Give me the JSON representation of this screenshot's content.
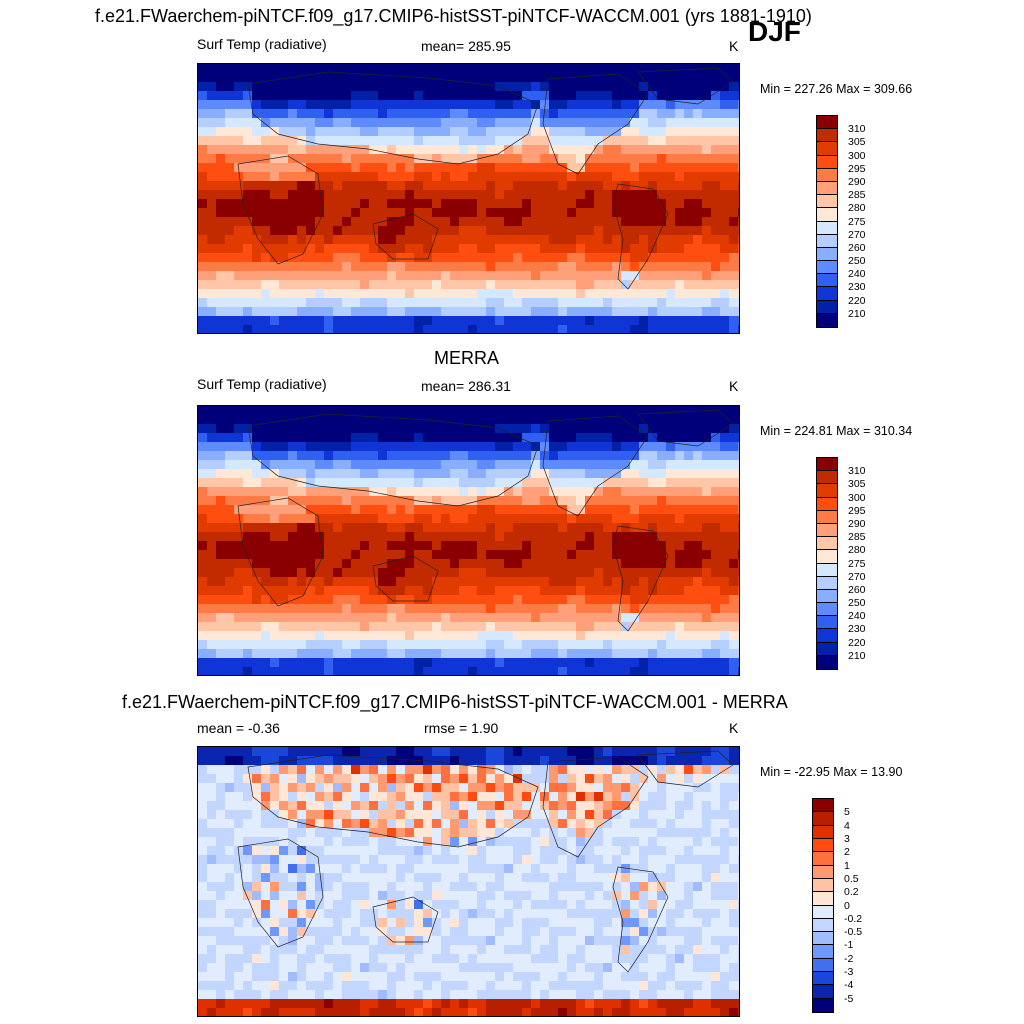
{
  "page": {
    "season": "DJF"
  },
  "chart_data": [
    {
      "type": "heatmap",
      "title": "f.e21.FWaerchem-piNTCF.f09_g17.CMIP6-histSST-piNTCF-WACCM.001 (yrs 1881-1910)",
      "left_label": "Surf Temp (radiative)",
      "center_label": "mean= 285.95",
      "units": "K",
      "minmax": "Min = 227.26 Max = 309.66",
      "mean": 285.95,
      "min": 227.26,
      "max": 309.66,
      "kind": "abs",
      "colorbar": {
        "labels": [
          "310",
          "305",
          "300",
          "295",
          "290",
          "285",
          "280",
          "275",
          "270",
          "260",
          "250",
          "240",
          "230",
          "220",
          "210"
        ],
        "colors": [
          "#8a0000",
          "#c22a00",
          "#e23b00",
          "#ff4e0f",
          "#ff7b45",
          "#ffa07a",
          "#ffc6a8",
          "#ffe8d6",
          "#d4e8ff",
          "#b3ceff",
          "#8aaeff",
          "#5e8cff",
          "#2f60f2",
          "#0f35d6",
          "#0021a8",
          "#00007a"
        ]
      }
    },
    {
      "type": "heatmap",
      "title": "MERRA",
      "left_label": "Surf Temp (radiative)",
      "center_label": "mean= 286.31",
      "units": "K",
      "minmax": "Min = 224.81 Max = 310.34",
      "mean": 286.31,
      "min": 224.81,
      "max": 310.34,
      "kind": "abs",
      "colorbar": {
        "labels": [
          "310",
          "305",
          "300",
          "295",
          "290",
          "285",
          "280",
          "275",
          "270",
          "260",
          "250",
          "240",
          "230",
          "220",
          "210"
        ],
        "colors": [
          "#8a0000",
          "#c22a00",
          "#e23b00",
          "#ff4e0f",
          "#ff7b45",
          "#ffa07a",
          "#ffc6a8",
          "#ffe8d6",
          "#d4e8ff",
          "#b3ceff",
          "#8aaeff",
          "#5e8cff",
          "#2f60f2",
          "#0f35d6",
          "#0021a8",
          "#00007a"
        ]
      }
    },
    {
      "type": "heatmap",
      "title": "f.e21.FWaerchem-piNTCF.f09_g17.CMIP6-histSST-piNTCF-WACCM.001 - MERRA",
      "left_label": "mean =  -0.36",
      "center_label": "rmse =   1.90",
      "units": "K",
      "minmax": "Min = -22.95 Max =  13.90",
      "mean": -0.36,
      "rmse": 1.9,
      "min": -22.95,
      "max": 13.9,
      "kind": "diff",
      "colorbar": {
        "labels": [
          "5",
          "4",
          "3",
          "2",
          "1",
          "0.5",
          "0.2",
          "0",
          "-0.2",
          "-0.5",
          "-1",
          "-2",
          "-3",
          "-4",
          "-5"
        ],
        "colors": [
          "#8a0000",
          "#b81e00",
          "#e03000",
          "#ff4a10",
          "#ff7040",
          "#ff9a70",
          "#ffc2a4",
          "#ffe6d6",
          "#e2ecff",
          "#c2d6ff",
          "#a0bcff",
          "#6f98ff",
          "#4070f0",
          "#1a46dc",
          "#0a26b0",
          "#00007a"
        ]
      }
    }
  ]
}
